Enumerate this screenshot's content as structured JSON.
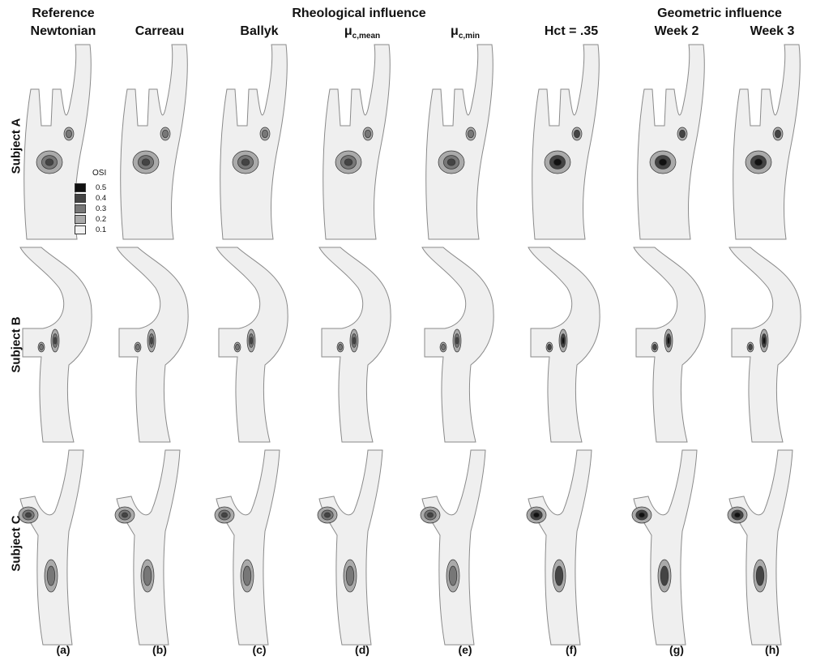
{
  "headers": {
    "reference": "Reference",
    "newtonian": "Newtonian",
    "rheological": "Rheological influence",
    "geometric": "Geometric influence",
    "columns": {
      "carreau": "Carreau",
      "ballyk": "Ballyk",
      "mu_symbol": "μ",
      "mean_sub": "c,mean",
      "min_sub": "c,min",
      "hct": "Hct = .35",
      "week2": "Week 2",
      "week3": "Week 3"
    }
  },
  "rows": [
    "Subject A",
    "Subject B",
    "Subject C"
  ],
  "panel_labels": [
    "(a)",
    "(b)",
    "(c)",
    "(d)",
    "(e)",
    "(f)",
    "(g)",
    "(h)"
  ],
  "legend": {
    "title": "OSI",
    "levels": [
      "0.5",
      "0.4",
      "0.3",
      "0.2",
      "0.1"
    ],
    "colors": [
      "#111111",
      "#444444",
      "#777777",
      "#aaaaaa",
      "#f2f2f2"
    ]
  },
  "palette": {
    "vessel_fill": "#efefef",
    "vessel_stroke": "#8a8a8a",
    "contour_stroke": "#333333"
  }
}
